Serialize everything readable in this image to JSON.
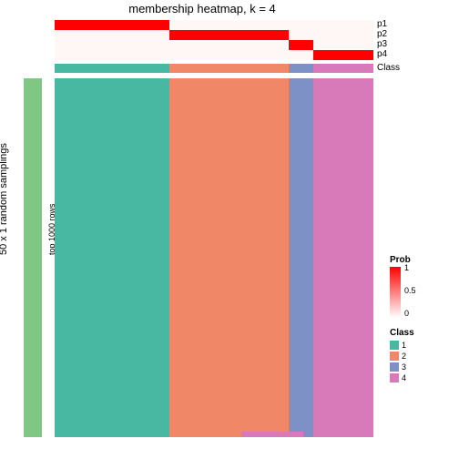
{
  "title": "membership heatmap, k = 4",
  "left_bar": {
    "color": "#7fc782",
    "label": "50 x 1 random samplings",
    "sublabel": "top 1000 rows"
  },
  "colors": {
    "class1": "#49b8a2",
    "class2": "#f08766",
    "class3": "#7e91c6",
    "class4": "#d879b9",
    "prob_high": "#ff0000",
    "prob_mid": "#ffb0a0",
    "prob_low": "#ffffff",
    "bg": "#ffffff"
  },
  "segments": [
    {
      "class": 1,
      "width_pct": 36.0
    },
    {
      "class": 2,
      "width_pct": 37.5
    },
    {
      "class": 3,
      "width_pct": 7.5
    },
    {
      "class": 4,
      "width_pct": 19.0
    }
  ],
  "annot_rows": [
    {
      "label": "p1",
      "active_seg": 0,
      "color": "#ff0000"
    },
    {
      "label": "p2",
      "active_seg": 1,
      "color": "#ff0000"
    },
    {
      "label": "p3",
      "active_seg": 2,
      "color": "#ff0000"
    },
    {
      "label": "p4",
      "active_seg": 3,
      "color": "#ff0000"
    }
  ],
  "legend_prob": {
    "title": "Prob",
    "ticks": [
      {
        "v": "1",
        "pos": 0
      },
      {
        "v": "0.5",
        "pos": 0.5
      },
      {
        "v": "0",
        "pos": 1
      }
    ]
  },
  "legend_class": {
    "title": "Class",
    "items": [
      "1",
      "2",
      "3",
      "4"
    ]
  },
  "bottom_accents": [
    {
      "seg": 1,
      "start": 60,
      "width": 40,
      "color": "#d879b9"
    },
    {
      "seg": 2,
      "start": 0,
      "width": 60,
      "color": "#d879b9"
    }
  ],
  "heatmap": {
    "type": "heatmap",
    "title_fontsize": 13,
    "label_fontsize": 10
  }
}
